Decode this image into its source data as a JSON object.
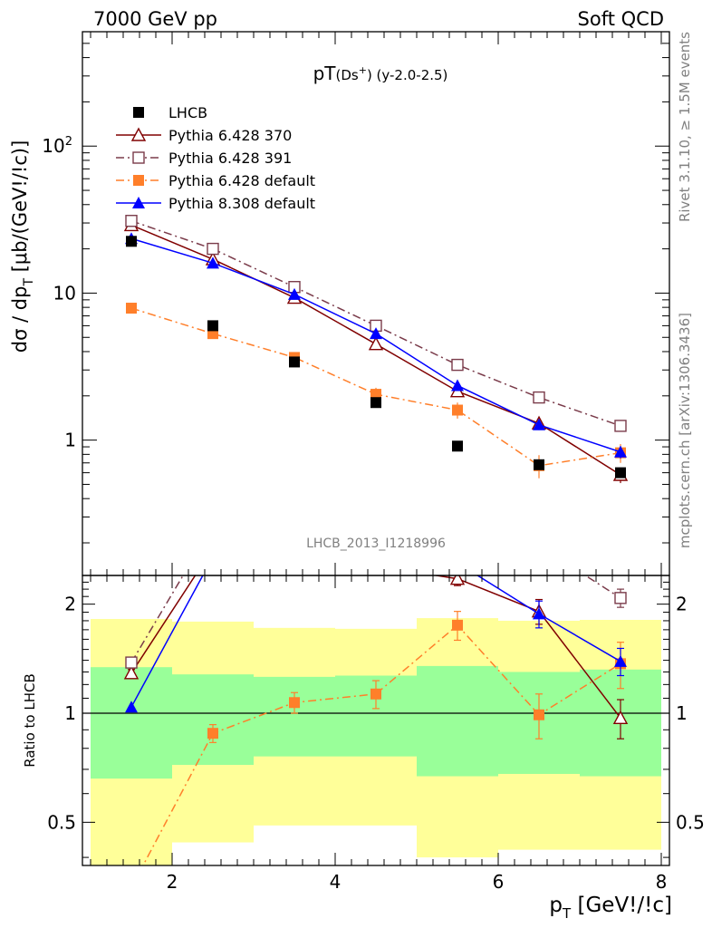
{
  "header": {
    "left": "7000 GeV pp",
    "right": "Soft QCD"
  },
  "side_labels": {
    "rivet": "Rivet 3.1.10, ≥ 1.5M events",
    "mcplots": "mcplots.cern.ch [arXiv:1306.3436]"
  },
  "chart_data": {
    "type": "scatter",
    "title_main": "pT",
    "title_paren": "(Ds",
    "title_sup": "+",
    "title_rest": ") (y-2.0-2.5)",
    "analysis_label": "LHCB_2013_I1218996",
    "xlabel_main": "p",
    "xlabel_sub": "T",
    "xlabel_rest": " [GeV!/!c]",
    "ylabel_top": "dσ / dp",
    "ylabel_sub": "T",
    "ylabel_rest": " [μb/(GeV!/!c)]",
    "ylabel_ratio": "Ratio to LHCB",
    "xlim": [
      0.9,
      8.1
    ],
    "ylim": [
      0.12,
      600
    ],
    "yscale": "log",
    "ratio_ylim": [
      0.38,
      2.4
    ],
    "ratio_yscale": "log",
    "x_ticks": [
      2,
      4,
      6,
      8
    ],
    "x_tick_labels": [
      "2",
      "4",
      "6",
      "8"
    ],
    "y_tick_labels": [
      {
        "value": 100,
        "base": "10",
        "exp": "2"
      },
      {
        "value": 10,
        "base": "10",
        "exp": ""
      },
      {
        "value": 1,
        "base": "1",
        "exp": ""
      }
    ],
    "ratio_tick_labels": [
      {
        "value": 2,
        "label": "2"
      },
      {
        "value": 1,
        "label": "1"
      },
      {
        "value": 0.5,
        "label": "0.5"
      }
    ],
    "legend_position": "top-left",
    "data": {
      "name": "LHCB",
      "x": [
        1.5,
        2.5,
        3.5,
        4.5,
        5.5,
        6.5,
        7.5
      ],
      "y": [
        22.5,
        6.0,
        3.4,
        1.8,
        0.91,
        0.68,
        0.6
      ],
      "color": "#000000",
      "marker": "square-filled",
      "band_1sigma": [
        [
          0.66,
          1.34
        ],
        [
          0.72,
          1.28
        ],
        [
          0.76,
          1.26
        ],
        [
          0.76,
          1.27
        ],
        [
          0.67,
          1.35
        ],
        [
          0.68,
          1.3
        ],
        [
          0.67,
          1.32
        ]
      ],
      "band_2sigma": [
        [
          0.33,
          1.82
        ],
        [
          0.44,
          1.79
        ],
        [
          0.49,
          1.72
        ],
        [
          0.49,
          1.71
        ],
        [
          0.4,
          1.83
        ],
        [
          0.42,
          1.8
        ],
        [
          0.42,
          1.81
        ]
      ],
      "band_color_inner": "#99ff99",
      "band_color_outer": "#ffff99"
    },
    "series": [
      {
        "name": "Pythia 6.428 370",
        "x": [
          1.5,
          2.5,
          3.5,
          4.5,
          5.5,
          6.5,
          7.5
        ],
        "y": [
          29.0,
          17.0,
          9.3,
          4.5,
          2.15,
          1.3,
          0.58
        ],
        "yerr": [
          0.5,
          0.3,
          0.2,
          0.1,
          0.1,
          0.08,
          0.07
        ],
        "ratio": [
          1.29,
          2.85,
          2.72,
          2.55,
          2.35,
          1.91,
          0.97
        ],
        "ratio_err": [
          0.03,
          0.05,
          0.06,
          0.06,
          0.1,
          0.15,
          0.12
        ],
        "color": "#800000",
        "marker": "triangle-open",
        "dash": ""
      },
      {
        "name": "Pythia 6.428 391",
        "x": [
          1.5,
          2.5,
          3.5,
          4.5,
          5.5,
          6.5,
          7.5
        ],
        "y": [
          31.0,
          20.0,
          11.0,
          6.0,
          3.25,
          1.95,
          1.25
        ],
        "yerr": [
          0.5,
          0.3,
          0.2,
          0.1,
          0.1,
          0.1,
          0.1
        ],
        "ratio": [
          1.38,
          3.3,
          3.2,
          3.3,
          3.55,
          2.9,
          2.08
        ],
        "ratio_err": [
          0.03,
          0.05,
          0.06,
          0.07,
          0.1,
          0.15,
          0.12
        ],
        "color": "#7a3b4a",
        "marker": "square-open",
        "dash": "9,4,2,4"
      },
      {
        "name": "Pythia 6.428 default",
        "x": [
          1.5,
          2.5,
          3.5,
          4.5,
          5.5,
          6.5,
          7.5
        ],
        "y": [
          7.9,
          5.3,
          3.65,
          2.05,
          1.6,
          0.67,
          0.82
        ],
        "yerr": [
          0.3,
          0.25,
          0.25,
          0.22,
          0.2,
          0.12,
          0.12
        ],
        "ratio": [
          0.33,
          0.88,
          1.07,
          1.13,
          1.75,
          0.99,
          1.37
        ],
        "ratio_err": [
          0.015,
          0.05,
          0.07,
          0.1,
          0.16,
          0.14,
          0.2
        ],
        "color": "#ff7f2a",
        "marker": "square-filled",
        "dash": "9,4,2,4"
      },
      {
        "name": "Pythia 8.308 default",
        "x": [
          1.5,
          2.5,
          3.5,
          4.5,
          5.5,
          6.5,
          7.5
        ],
        "y": [
          23.5,
          16.0,
          9.8,
          5.3,
          2.35,
          1.27,
          0.83
        ],
        "yerr": [
          0.5,
          0.3,
          0.2,
          0.12,
          0.12,
          0.1,
          0.08
        ],
        "ratio": [
          1.04,
          2.7,
          2.85,
          2.9,
          2.6,
          1.88,
          1.39
        ],
        "ratio_err": [
          0.02,
          0.05,
          0.06,
          0.07,
          0.12,
          0.16,
          0.12
        ],
        "color": "#0000ff",
        "marker": "triangle-filled",
        "dash": ""
      }
    ]
  }
}
